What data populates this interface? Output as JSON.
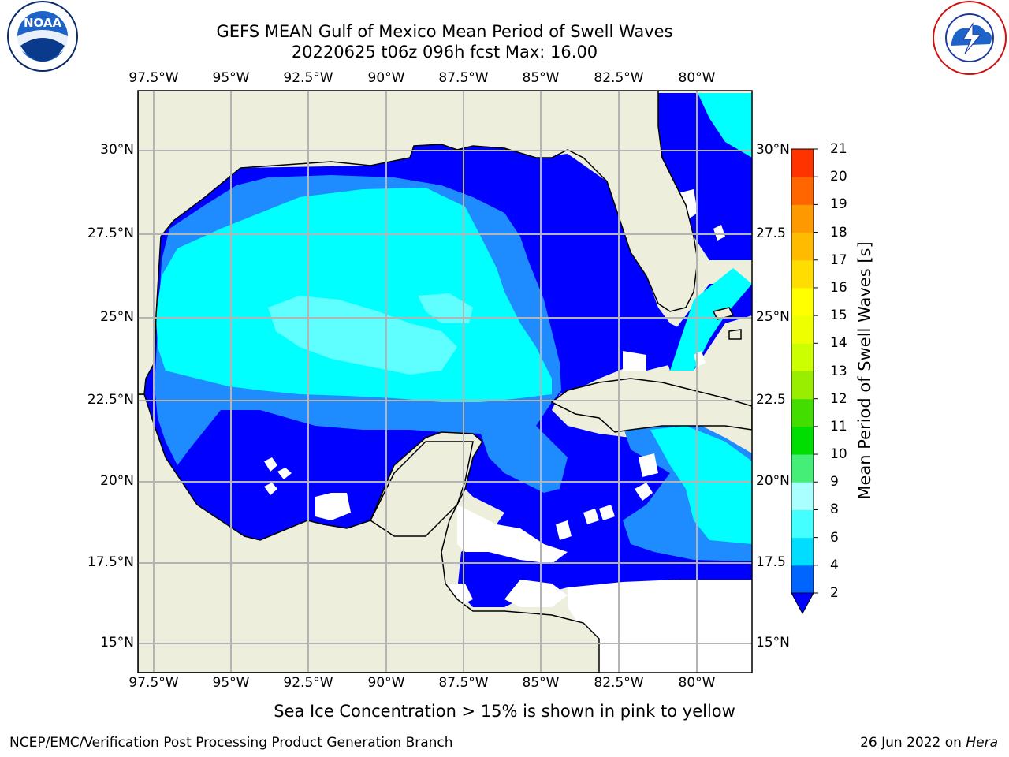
{
  "header": {
    "title_line1": "GEFS MEAN Gulf of Mexico Mean Period of Swell Waves",
    "title_line2": "20220625 t06z 096h fcst   Max: 16.00"
  },
  "logos": {
    "left": "NOAA",
    "left_ring": "NATIONAL OCEANIC AND ATMOSPHERIC ADMINISTRATION · U.S. DEPARTMENT OF COMMERCE",
    "right_ring": "NATIONAL WEATHER SERVICE"
  },
  "map": {
    "lon_ticks": [
      "97.5°W",
      "95°W",
      "92.5°W",
      "90°W",
      "87.5°W",
      "85°W",
      "82.5°W",
      "80°W"
    ],
    "lat_ticks_left": [
      "30°N",
      "27.5°N",
      "25°N",
      "22.5°N",
      "20°N",
      "17.5°N",
      "15°N"
    ],
    "lat_ticks_right": [
      "30°N",
      "27.5",
      "25°N",
      "22.5",
      "20°N",
      "17.5",
      "15°N"
    ],
    "land_color": "#eeeedd",
    "ocean_palette": {
      "2-4": "#0000ff",
      "4-6": "#1e8cff",
      "6-8": "#00ffff",
      "8-9": "#5fffff",
      "ice": "#ffff00"
    }
  },
  "colorbar": {
    "label": "Mean Period of Swell Waves [s]",
    "ticks": [
      "2",
      "4",
      "6",
      "8",
      "9",
      "10",
      "11",
      "12",
      "13",
      "14",
      "15",
      "16",
      "17",
      "18",
      "19",
      "20",
      "21"
    ],
    "colors": [
      "#0064ff",
      "#00ddff",
      "#44ffff",
      "#aaffff",
      "#44ee77",
      "#00dd00",
      "#44dd00",
      "#99ee00",
      "#ccff00",
      "#eeff00",
      "#ffff00",
      "#ffdd00",
      "#ffbb00",
      "#ff9900",
      "#ff6600",
      "#ff3300"
    ],
    "extend_color": "#0000ff"
  },
  "caption": "Sea Ice Concentration > 15% is shown in pink to yellow",
  "footer": {
    "left": "NCEP/EMC/Verification Post Processing Product Generation Branch",
    "right_date": "26 Jun 2022 on ",
    "right_host": "Hera"
  }
}
